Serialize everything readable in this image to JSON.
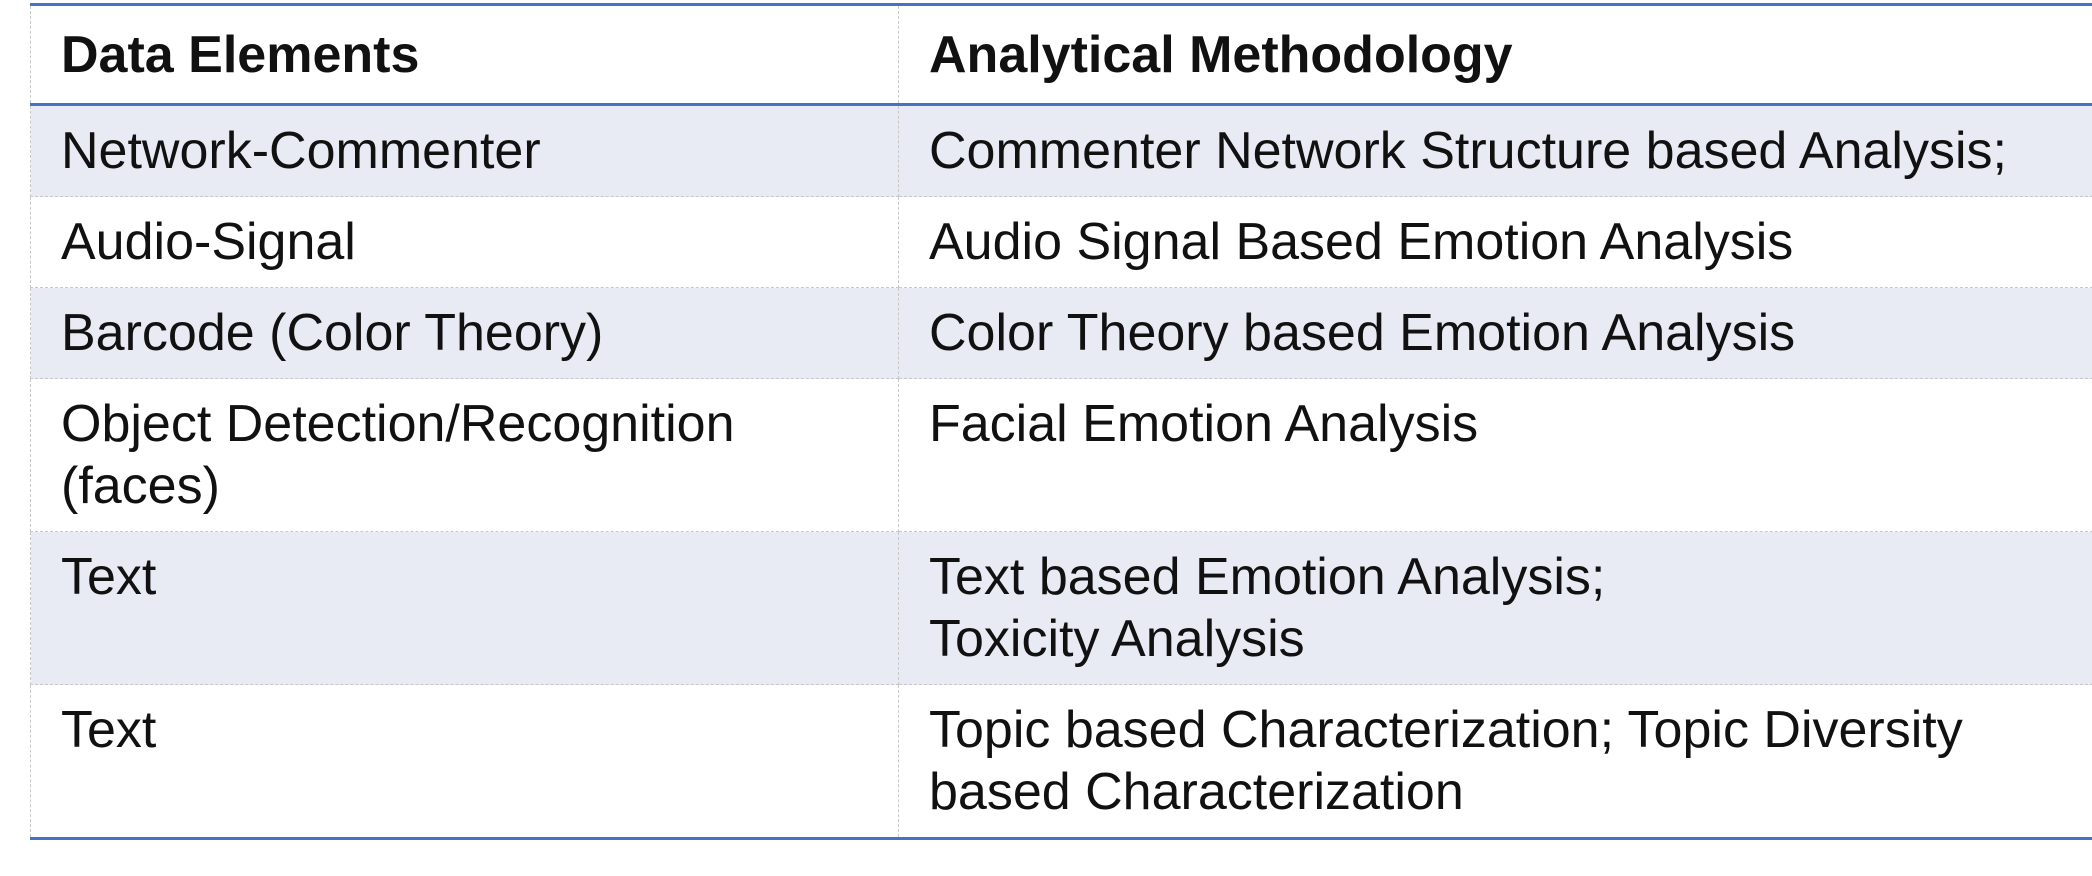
{
  "table": {
    "headers": [
      "Data Elements",
      "Analytical Methodology"
    ],
    "rows": [
      {
        "element": "Network-Commenter",
        "methodology": [
          "Commenter Network Structure based Analysis;"
        ]
      },
      {
        "element": "Audio-Signal",
        "methodology": [
          "Audio Signal Based Emotion Analysis"
        ]
      },
      {
        "element": "Barcode (Color Theory)",
        "methodology": [
          "Color Theory based Emotion Analysis"
        ]
      },
      {
        "element": "Object Detection/Recognition (faces)",
        "methodology": [
          "Facial Emotion Analysis"
        ]
      },
      {
        "element": "Text",
        "methodology": [
          "Text based Emotion Analysis;",
          "Toxicity Analysis"
        ]
      },
      {
        "element": "Text",
        "methodology": [
          "Topic based Characterization; Topic Diversity based Characterization"
        ]
      }
    ],
    "colors": {
      "rule": "#4472c4",
      "shade": "#e8eaf4"
    }
  }
}
